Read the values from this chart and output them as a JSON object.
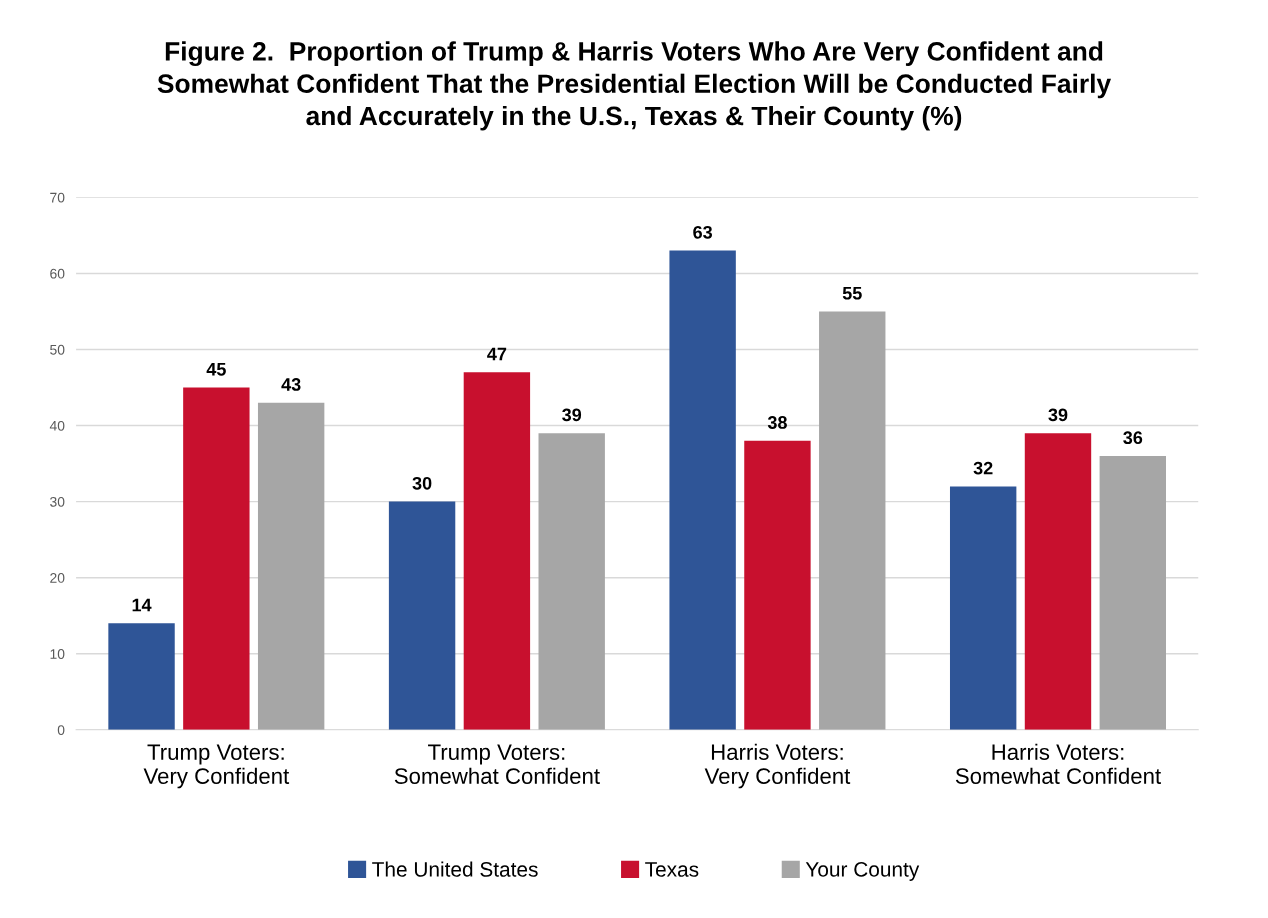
{
  "chart_data": {
    "type": "bar",
    "title": "Figure 2.  Proportion of Trump & Harris Voters Who Are Very Confident and\nSomewhat Confident That the Presidential Election Will be Conducted Fairly\nand Accurately in the U.S., Texas & Their County (%)",
    "categories": [
      "Trump Voters:\nVery Confident",
      "Trump Voters:\nSomewhat Confident",
      "Harris Voters:\nVery Confident",
      "Harris Voters:\nSomewhat Confident"
    ],
    "series": [
      {
        "name": "The United States",
        "color": "#2f5597",
        "values": [
          14,
          30,
          63,
          32
        ]
      },
      {
        "name": "Texas",
        "color": "#c8102e",
        "values": [
          45,
          47,
          38,
          39
        ]
      },
      {
        "name": "Your County",
        "color": "#a6a6a6",
        "values": [
          43,
          39,
          55,
          36
        ]
      }
    ],
    "ylim": [
      0,
      70
    ],
    "yticks": [
      0,
      10,
      20,
      30,
      40,
      50,
      60,
      70
    ],
    "grid": "y",
    "legend": "bottom",
    "data_labels": true
  }
}
